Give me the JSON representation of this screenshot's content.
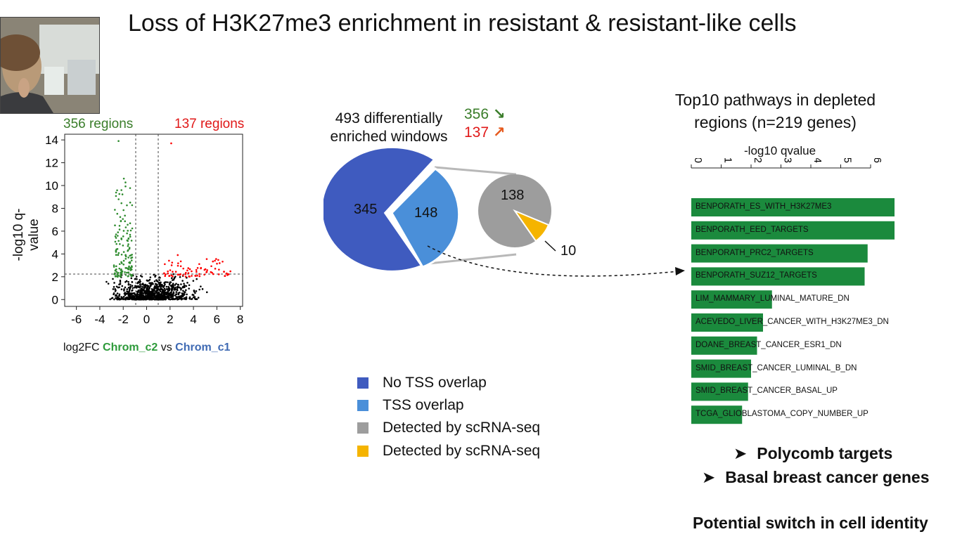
{
  "slide": {
    "title": "Loss of H3K27me3 enrichment in resistant & resistant-like cells",
    "webcam_icon": "presenter-video"
  },
  "volcano": {
    "left_count_label": "356 regions",
    "right_count_label": "137 regions",
    "ylabel": "-log10 q-value",
    "yticks": [
      "0",
      "2",
      "4",
      "6",
      "8",
      "10",
      "12",
      "14"
    ],
    "xticks": [
      "-6",
      "-4",
      "-2",
      "0",
      "2",
      "4",
      "6",
      "8"
    ],
    "xlabel_prefix": "log2FC ",
    "xlabel_c2": "Chrom_c2",
    "xlabel_vs": " vs ",
    "xlabel_c1": "Chrom_c1",
    "colors": {
      "down": "#2e8b2e",
      "up": "#ff0000",
      "ns": "#000000"
    }
  },
  "pie": {
    "title_line1": "493 differentially",
    "title_line2": "enriched windows",
    "down_count": "356",
    "up_count": "137",
    "main_a": "345",
    "main_b": "148",
    "sub_a": "138",
    "sub_b": "10",
    "colors": {
      "no_tss": "#3f5bbf",
      "tss": "#4a8fd9",
      "detected_gray": "#9d9d9d",
      "detected_yellow": "#f5b400"
    }
  },
  "legend": [
    {
      "label": "No TSS overlap",
      "color": "#3f5bbf"
    },
    {
      "label": "TSS overlap",
      "color": "#4a8fd9"
    },
    {
      "label": "Detected by scRNA-seq",
      "color": "#9d9d9d"
    },
    {
      "label": "Detected by scRNA-seq",
      "color": "#f5b400"
    }
  ],
  "pathways": {
    "title_line1": "Top10 pathways in depleted",
    "title_line2": "regions (n=219 genes)",
    "axis_label": "-log10 qvalue",
    "ticks": [
      "0",
      "1",
      "2",
      "3",
      "4",
      "5",
      "6"
    ],
    "bar_color": "#1b8a3d",
    "items": [
      {
        "label": "BENPORATH_ES_WITH_H3K27ME3",
        "value": 6.8
      },
      {
        "label": "BENPORATH_EED_TARGETS",
        "value": 6.8
      },
      {
        "label": "BENPORATH_PRC2_TARGETS",
        "value": 5.9
      },
      {
        "label": "BENPORATH_SUZ12_TARGETS",
        "value": 5.8
      },
      {
        "label": "LIM_MAMMARY_LUMINAL_MATURE_DN",
        "value": 2.7
      },
      {
        "label": "ACEVEDO_LIVER_CANCER_WITH_H3K27ME3_DN",
        "value": 2.4
      },
      {
        "label": "DOANE_BREAST_CANCER_ESR1_DN",
        "value": 2.2
      },
      {
        "label": "SMID_BREAST_CANCER_LUMINAL_B_DN",
        "value": 2.0
      },
      {
        "label": "SMID_BREAST_CANCER_BASAL_UP",
        "value": 1.9
      },
      {
        "label": "TCGA_GLIOBLASTOMA_COPY_NUMBER_UP",
        "value": 1.7
      }
    ]
  },
  "conclusions": {
    "bullet1": "Polycomb targets",
    "bullet2": "Basal breast cancer genes",
    "final": "Potential switch in cell identity"
  }
}
